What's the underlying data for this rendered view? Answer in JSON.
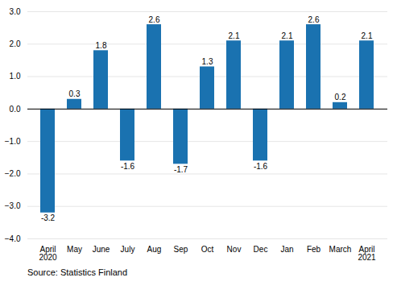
{
  "chart_data": {
    "type": "bar",
    "categories": [
      "April\n2020",
      "May",
      "June",
      "July",
      "Aug",
      "Sep",
      "Oct",
      "Nov",
      "Dec",
      "Jan",
      "Feb",
      "March",
      "April\n2021"
    ],
    "values": [
      -3.2,
      0.3,
      1.8,
      -1.6,
      2.6,
      -1.7,
      1.3,
      2.1,
      -1.6,
      2.1,
      2.6,
      0.2,
      2.1
    ],
    "color": "#1a72b0",
    "ylim": [
      -4,
      3
    ],
    "yticks": [
      -4,
      -3,
      -2,
      -1,
      0,
      1,
      2,
      3
    ],
    "grid": true,
    "data_labels": true,
    "annotations": [
      "Source: Statistics Finland"
    ]
  }
}
